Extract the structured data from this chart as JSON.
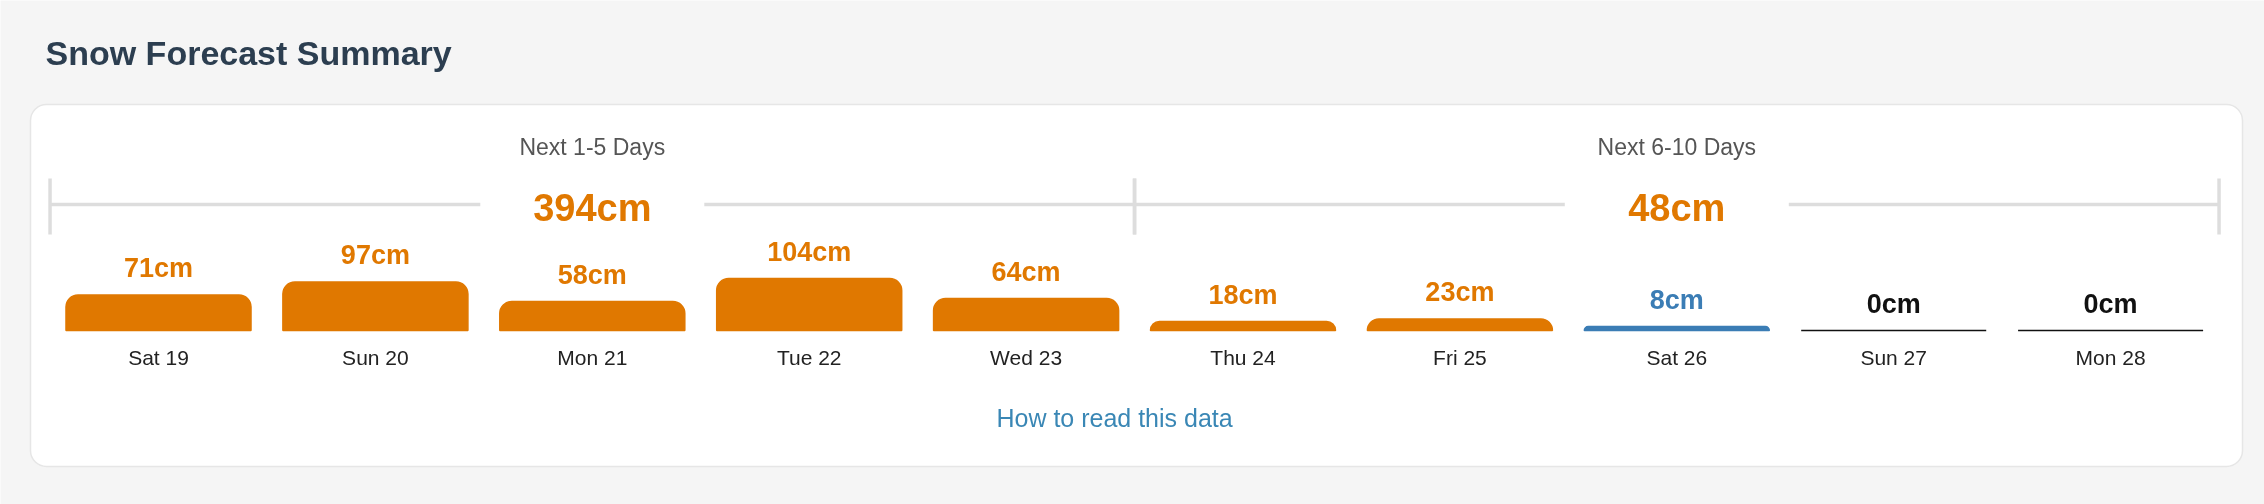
{
  "chart_data": {
    "type": "bar",
    "title": "Snow Forecast Summary",
    "categories": [
      "Sat 19",
      "Sun 20",
      "Mon 21",
      "Tue 22",
      "Wed 23",
      "Thu 24",
      "Fri 25",
      "Sat 26",
      "Sun 27",
      "Mon 28"
    ],
    "values": [
      71,
      97,
      58,
      104,
      64,
      18,
      23,
      8,
      0,
      0
    ],
    "colors": [
      "#e07800",
      "#e07800",
      "#e07800",
      "#e07800",
      "#e07800",
      "#e07800",
      "#e07800",
      "#3b7db5",
      "#111111",
      "#111111"
    ],
    "value_labels": [
      "71cm",
      "97cm",
      "58cm",
      "104cm",
      "64cm",
      "18cm",
      "23cm",
      "8cm",
      "0cm",
      "0cm"
    ],
    "annotations": [
      "Next 1-5 Days",
      "394cm",
      "Next 6-10 Days",
      "48cm",
      "How to read this data"
    ]
  }
}
